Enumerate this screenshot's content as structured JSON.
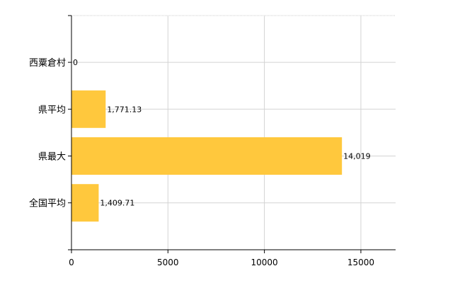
{
  "chart_data": {
    "type": "bar",
    "orientation": "horizontal",
    "categories": [
      "西粟倉村",
      "県平均",
      "県最大",
      "全国平均"
    ],
    "values": [
      0,
      1771.13,
      14019,
      1409.71
    ],
    "data_labels": [
      "0",
      "1,771.13",
      "14,019",
      "1,409.71"
    ],
    "xlim": [
      0,
      16800
    ],
    "xticks": [
      0,
      5000,
      10000,
      15000
    ],
    "xtick_labels": [
      "0",
      "5000",
      "10000",
      "15000"
    ],
    "bar_color": "#FFC83D",
    "grid": true,
    "title": "",
    "xlabel": "",
    "ylabel": ""
  }
}
